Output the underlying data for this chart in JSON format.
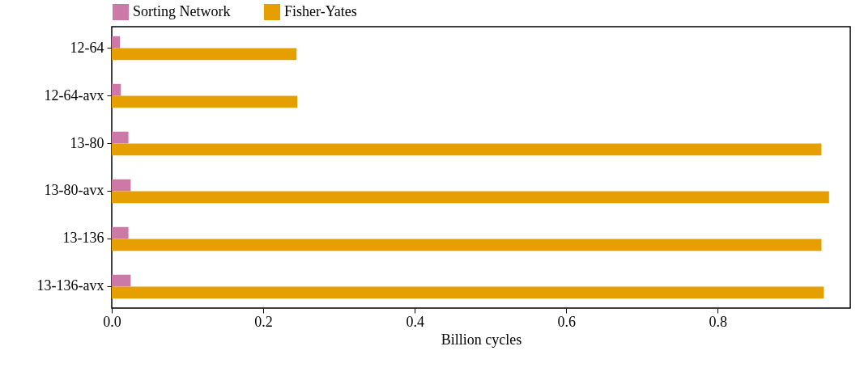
{
  "chart_data": {
    "type": "bar",
    "orientation": "horizontal",
    "xlabel": "Billion cycles",
    "categories": [
      "12-64",
      "12-64-avx",
      "13-80",
      "13-80-avx",
      "13-136",
      "13-136-avx"
    ],
    "series": [
      {
        "name": "Sorting Network",
        "color": "#cc79a7",
        "values": [
          0.011,
          0.012,
          0.022,
          0.025,
          0.022,
          0.025
        ]
      },
      {
        "name": "Fisher-Yates",
        "color": "#e69f00",
        "values": [
          0.244,
          0.245,
          0.937,
          0.947,
          0.937,
          0.94
        ]
      }
    ],
    "xlim": [
      0,
      0.975
    ],
    "xticks": [
      {
        "value": 0,
        "label": "0.0"
      },
      {
        "value": 0.2,
        "label": "0.2"
      },
      {
        "value": 0.4,
        "label": "0.4"
      },
      {
        "value": 0.6,
        "label": "0.6"
      },
      {
        "value": 0.8,
        "label": "0.8"
      }
    ],
    "legend": "top left",
    "grid": false
  }
}
